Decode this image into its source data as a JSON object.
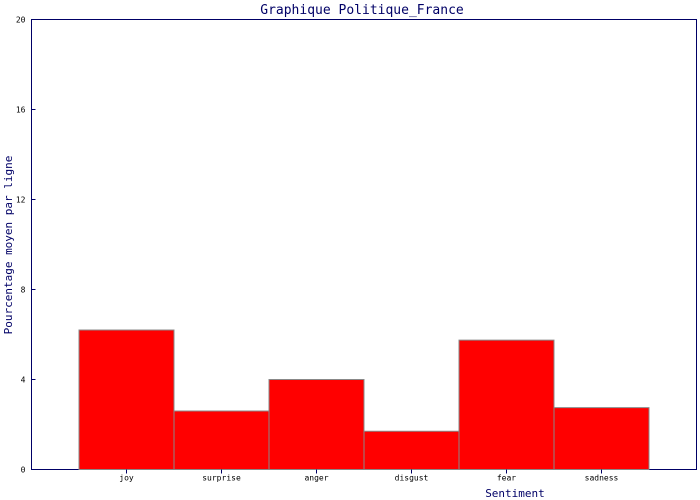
{
  "chart_data": {
    "type": "bar",
    "title": "Graphique Politique_France",
    "xlabel": "Sentiment",
    "ylabel": "Pourcentage moyen par ligne",
    "categories": [
      "joy",
      "surprise",
      "anger",
      "disgust",
      "fear",
      "sadness"
    ],
    "values": [
      6.2,
      2.6,
      4.0,
      1.7,
      5.75,
      2.75
    ],
    "ylim": [
      0,
      20
    ],
    "yticks": [
      "0",
      "4",
      "8",
      "12",
      "16",
      "20"
    ],
    "grid": false,
    "legend": "none",
    "colors": {
      "bar_fill": "#ff0000",
      "bar_stroke": "#888888",
      "axis": "#000066",
      "text": "#000066"
    }
  }
}
